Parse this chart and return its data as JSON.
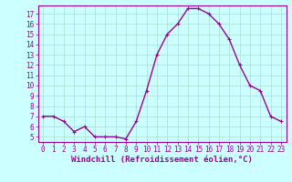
{
  "x": [
    0,
    1,
    2,
    3,
    4,
    5,
    6,
    7,
    8,
    9,
    10,
    11,
    12,
    13,
    14,
    15,
    16,
    17,
    18,
    19,
    20,
    21,
    22,
    23
  ],
  "y": [
    7,
    7,
    6.5,
    5.5,
    6,
    5,
    5,
    5,
    4.8,
    6.5,
    9.5,
    13,
    15,
    16,
    17.5,
    17.5,
    17,
    16,
    14.5,
    12,
    10,
    9.5,
    7,
    6.5
  ],
  "line_color": "#990099",
  "marker": "+",
  "bg_color": "#ccffff",
  "grid_color": "#aaddcc",
  "xlabel": "Windchill (Refroidissement éolien,°C)",
  "xlabel_color": "#990099",
  "tick_color": "#990099",
  "ytick_labels": [
    "5",
    "6",
    "7",
    "8",
    "9",
    "10",
    "11",
    "12",
    "13",
    "14",
    "15",
    "16",
    "17"
  ],
  "ytick_vals": [
    5,
    6,
    7,
    8,
    9,
    10,
    11,
    12,
    13,
    14,
    15,
    16,
    17
  ],
  "xtick_labels": [
    "0",
    "1",
    "2",
    "3",
    "4",
    "5",
    "6",
    "7",
    "8",
    "9",
    "10",
    "11",
    "12",
    "13",
    "14",
    "15",
    "16",
    "17",
    "18",
    "19",
    "20",
    "21",
    "22",
    "23"
  ],
  "xtick_vals": [
    0,
    1,
    2,
    3,
    4,
    5,
    6,
    7,
    8,
    9,
    10,
    11,
    12,
    13,
    14,
    15,
    16,
    17,
    18,
    19,
    20,
    21,
    22,
    23
  ],
  "ylim": [
    4.5,
    17.8
  ],
  "xlim": [
    -0.5,
    23.5
  ],
  "markersize": 3,
  "linewidth": 1.0,
  "tick_fontsize": 5.5,
  "xlabel_fontsize": 6.5,
  "spine_color": "#990099"
}
